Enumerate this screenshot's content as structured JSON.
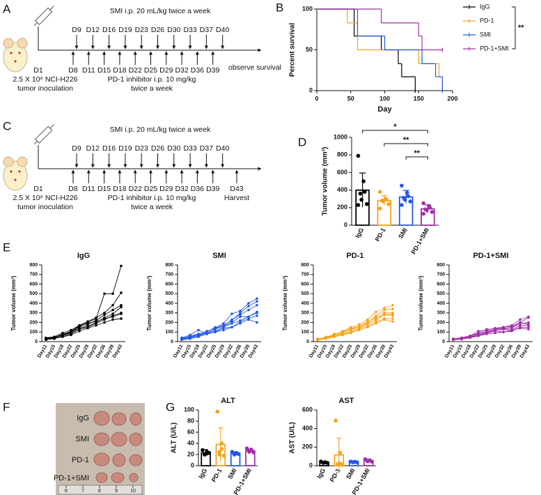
{
  "panel_labels": [
    "A",
    "B",
    "C",
    "D",
    "E",
    "F",
    "G"
  ],
  "schematics": [
    {
      "top_text": "SMI i.p. 20 mL/kg twice a week",
      "top_days": [
        "D9",
        "D12",
        "D16",
        "D19",
        "D23",
        "D26",
        "D30",
        "D33",
        "D37",
        "D40"
      ],
      "bottom_days": [
        "D8",
        "D11",
        "D15",
        "D18",
        "D22",
        "D25",
        "D29",
        "D32",
        "D36",
        "D39"
      ],
      "start_day": "D1",
      "inoculation": [
        "2.5 X 10⁶ NCI-H226",
        "tumor inoculation"
      ],
      "bottom_text": [
        "PD-1 inhibitor i.p. 10 mg/kg",
        "twice a week"
      ],
      "end_text": "observe survival"
    },
    {
      "top_text": "SMI i.p. 20 mL/kg twice a week",
      "top_days": [
        "D9",
        "D12",
        "D16",
        "D19",
        "D23",
        "D26",
        "D30",
        "D33",
        "D37",
        "D40"
      ],
      "bottom_days": [
        "D8",
        "D11",
        "D15",
        "D18",
        "D22",
        "D25",
        "D29",
        "D32",
        "D36",
        "D39"
      ],
      "start_day": "D1",
      "inoculation": [
        "2.5 X 10⁶ NCI-H226",
        "tumor inoculation"
      ],
      "bottom_text": [
        "PD-1 inhibitor i.p. 10 mg/kg",
        "twice a week"
      ],
      "end_day": "D43",
      "end_text": "Harvest"
    }
  ],
  "photo": {
    "groups": [
      "IgG",
      "SMI",
      "PD-1",
      "PD-1+SMI"
    ],
    "ruler": [
      6,
      7,
      8,
      9,
      10
    ]
  },
  "chart_data": [
    {
      "type": "line",
      "step": true,
      "ylabel": "Percent survival",
      "xlabel": "Day",
      "xlim": [
        0,
        200
      ],
      "xticks": [
        0,
        50,
        100,
        150,
        200
      ],
      "ylim": [
        0,
        100
      ],
      "yticks": [
        0,
        50,
        100
      ],
      "legend": "right",
      "significance_label": "**",
      "series": [
        {
          "name": "IgG",
          "color": "#000000",
          "x": [
            0,
            55,
            95,
            120,
            125,
            145
          ],
          "values": [
            100,
            67,
            50,
            33,
            17,
            0
          ]
        },
        {
          "name": "PD-1",
          "color": "#f5a31a",
          "x": [
            0,
            45,
            60,
            150,
            180,
            185
          ],
          "values": [
            100,
            83,
            50,
            33,
            17,
            0
          ]
        },
        {
          "name": "SMI",
          "color": "#2457e6",
          "x": [
            0,
            60,
            100,
            155,
            175,
            185
          ],
          "values": [
            100,
            67,
            50,
            33,
            17,
            0
          ]
        },
        {
          "name": "PD-1+SMI",
          "color": "#a12ea8",
          "x": [
            0,
            95,
            150,
            155,
            185
          ],
          "values": [
            100,
            83,
            67,
            50,
            50
          ]
        }
      ]
    },
    {
      "type": "bar",
      "ylabel": "Tumor volume (mm³)",
      "categories": [
        "IgG",
        "PD-1",
        "SMI",
        "PD-1+SMI"
      ],
      "colors": [
        "#000000",
        "#f5a31a",
        "#2457e6",
        "#a12ea8"
      ],
      "values": [
        399,
        280,
        321,
        186
      ],
      "errors": [
        195,
        55,
        75,
        45
      ],
      "points": [
        [
          790,
          500,
          380,
          360,
          290,
          240,
          230
        ],
        [
          380,
          300,
          290,
          280,
          270,
          240,
          190
        ],
        [
          450,
          370,
          330,
          310,
          290,
          270,
          230
        ],
        [
          250,
          220,
          200,
          180,
          170,
          150,
          130
        ]
      ],
      "ylim": [
        0,
        1000
      ],
      "yticks": [
        0,
        200,
        400,
        600,
        800,
        1000
      ],
      "significance": [
        {
          "between": [
            "IgG",
            "PD-1+SMI"
          ],
          "label": "*"
        },
        {
          "between": [
            "PD-1",
            "PD-1+SMI"
          ],
          "label": "**"
        },
        {
          "between": [
            "SMI",
            "PD-1+SMI"
          ],
          "label": "**"
        }
      ]
    },
    {
      "type": "line",
      "title": "IgG",
      "ylabel": "Tumor volume (mm³)",
      "color": "#000000",
      "categories": [
        "Day11",
        "Day15",
        "Day18",
        "Day22",
        "Day25",
        "Day29",
        "Day32",
        "Day36",
        "Day39",
        "Day43"
      ],
      "ylim": [
        0,
        800
      ],
      "yticks": [
        0,
        100,
        200,
        300,
        400,
        500,
        600,
        700,
        800
      ],
      "series": [
        {
          "values": [
            30,
            40,
            70,
            110,
            160,
            200,
            240,
            500,
            500,
            790
          ]
        },
        {
          "values": [
            40,
            50,
            90,
            120,
            170,
            210,
            250,
            300,
            380,
            510
          ]
        },
        {
          "values": [
            20,
            40,
            80,
            100,
            150,
            180,
            220,
            280,
            330,
            380
          ]
        },
        {
          "values": [
            30,
            45,
            70,
            90,
            140,
            160,
            200,
            250,
            290,
            360
          ]
        },
        {
          "values": [
            25,
            30,
            60,
            80,
            130,
            150,
            190,
            230,
            270,
            300
          ]
        },
        {
          "values": [
            35,
            40,
            70,
            100,
            170,
            190,
            210,
            240,
            260,
            290
          ]
        },
        {
          "values": [
            20,
            35,
            50,
            70,
            110,
            140,
            170,
            200,
            230,
            240
          ]
        }
      ]
    },
    {
      "type": "line",
      "title": "SMI",
      "ylabel": "Tumor volume (mm³)",
      "color": "#2457e6",
      "categories": [
        "Day11",
        "Day15",
        "Day18",
        "Day22",
        "Day25",
        "Day29",
        "Day32",
        "Day36",
        "Day39",
        "Day43"
      ],
      "ylim": [
        0,
        800
      ],
      "yticks": [
        0,
        100,
        200,
        300,
        400,
        500,
        600,
        700,
        800
      ],
      "series": [
        {
          "values": [
            40,
            70,
            120,
            80,
            140,
            190,
            290,
            320,
            400,
            450
          ]
        },
        {
          "values": [
            30,
            60,
            80,
            100,
            150,
            170,
            220,
            300,
            370,
            420
          ]
        },
        {
          "values": [
            20,
            50,
            70,
            90,
            130,
            160,
            230,
            280,
            330,
            380
          ]
        },
        {
          "values": [
            30,
            50,
            70,
            110,
            140,
            160,
            200,
            260,
            260,
            300
          ]
        },
        {
          "values": [
            40,
            45,
            70,
            90,
            110,
            150,
            190,
            220,
            260,
            310
          ]
        },
        {
          "values": [
            20,
            30,
            50,
            80,
            100,
            120,
            150,
            210,
            240,
            270
          ]
        },
        {
          "values": [
            25,
            40,
            60,
            80,
            100,
            140,
            150,
            190,
            230,
            200
          ]
        }
      ]
    },
    {
      "type": "line",
      "title": "PD-1",
      "ylabel": "Tumor volume (mm³)",
      "color": "#f5a31a",
      "categories": [
        "Day11",
        "Day15",
        "Day18",
        "Day22",
        "Day25",
        "Day29",
        "Day32",
        "Day36",
        "Day39",
        "Day43"
      ],
      "ylim": [
        0,
        800
      ],
      "yticks": [
        0,
        100,
        200,
        300,
        400,
        500,
        600,
        700,
        800
      ],
      "series": [
        {
          "values": [
            20,
            50,
            70,
            110,
            150,
            180,
            230,
            310,
            350,
            380
          ]
        },
        {
          "values": [
            30,
            40,
            70,
            100,
            140,
            160,
            200,
            270,
            330,
            340
          ]
        },
        {
          "values": [
            25,
            40,
            80,
            100,
            130,
            160,
            210,
            250,
            300,
            300
          ]
        },
        {
          "values": [
            20,
            35,
            60,
            90,
            120,
            150,
            190,
            240,
            280,
            290
          ]
        },
        {
          "values": [
            30,
            40,
            60,
            80,
            100,
            140,
            180,
            220,
            280,
            270
          ]
        },
        {
          "values": [
            20,
            30,
            50,
            70,
            90,
            130,
            160,
            200,
            240,
            240
          ]
        },
        {
          "values": [
            15,
            30,
            50,
            70,
            100,
            120,
            150,
            190,
            230,
            210
          ]
        }
      ]
    },
    {
      "type": "line",
      "title": "PD-1+SMI",
      "ylabel": "Tumor volume (mm³)",
      "color": "#a12ea8",
      "categories": [
        "Day11",
        "Day15",
        "Day18",
        "Day22",
        "Day25",
        "Day29",
        "Day32",
        "Day36",
        "Day39",
        "Day43"
      ],
      "ylim": [
        0,
        800
      ],
      "yticks": [
        0,
        100,
        200,
        300,
        400,
        500,
        600,
        700,
        800
      ],
      "series": [
        {
          "values": [
            30,
            40,
            60,
            110,
            120,
            140,
            150,
            170,
            230,
            260
          ]
        },
        {
          "values": [
            25,
            40,
            60,
            90,
            130,
            130,
            150,
            160,
            200,
            250
          ]
        },
        {
          "values": [
            20,
            35,
            60,
            80,
            110,
            120,
            140,
            140,
            190,
            200
          ]
        },
        {
          "values": [
            30,
            30,
            50,
            70,
            90,
            120,
            130,
            150,
            200,
            180
          ]
        },
        {
          "values": [
            20,
            35,
            60,
            80,
            100,
            120,
            130,
            120,
            170,
            170
          ]
        },
        {
          "values": [
            25,
            30,
            50,
            60,
            90,
            110,
            100,
            110,
            150,
            150
          ]
        },
        {
          "values": [
            20,
            25,
            40,
            60,
            80,
            90,
            100,
            120,
            140,
            130
          ]
        }
      ]
    },
    {
      "type": "bar",
      "title": "ALT",
      "ylabel": "ALT (U/L)",
      "categories": [
        "IgG",
        "PD-1",
        "SMI",
        "PD-1+SMI"
      ],
      "colors": [
        "#000000",
        "#f5a31a",
        "#2457e6",
        "#a12ea8"
      ],
      "values": [
        23,
        38,
        22,
        27
      ],
      "errors": [
        6,
        30,
        3,
        3
      ],
      "points": [
        [
          28,
          25,
          22,
          20,
          21,
          23
        ],
        [
          97,
          40,
          30,
          25,
          20,
          18
        ],
        [
          25,
          23,
          22,
          21,
          20,
          21
        ],
        [
          31,
          29,
          28,
          27,
          25,
          24
        ]
      ],
      "ylim": [
        0,
        100
      ],
      "yticks": [
        0,
        20,
        40,
        60,
        80,
        100
      ]
    },
    {
      "type": "bar",
      "title": "AST",
      "ylabel": "AST (U/L)",
      "categories": [
        "IgG",
        "PD-1",
        "SMI",
        "PD-1+SMI"
      ],
      "colors": [
        "#000000",
        "#f5a31a",
        "#2457e6",
        "#a12ea8"
      ],
      "values": [
        35,
        116,
        40,
        55
      ],
      "errors": [
        8,
        180,
        5,
        10
      ],
      "points": [
        [
          45,
          38,
          35,
          32,
          30,
          30
        ],
        [
          485,
          140,
          25,
          20,
          15,
          10
        ],
        [
          45,
          42,
          40,
          38,
          38,
          37
        ],
        [
          70,
          60,
          55,
          50,
          50,
          45
        ]
      ],
      "ylim": [
        0,
        600
      ],
      "yticks": [
        0,
        200,
        400,
        600
      ]
    }
  ]
}
